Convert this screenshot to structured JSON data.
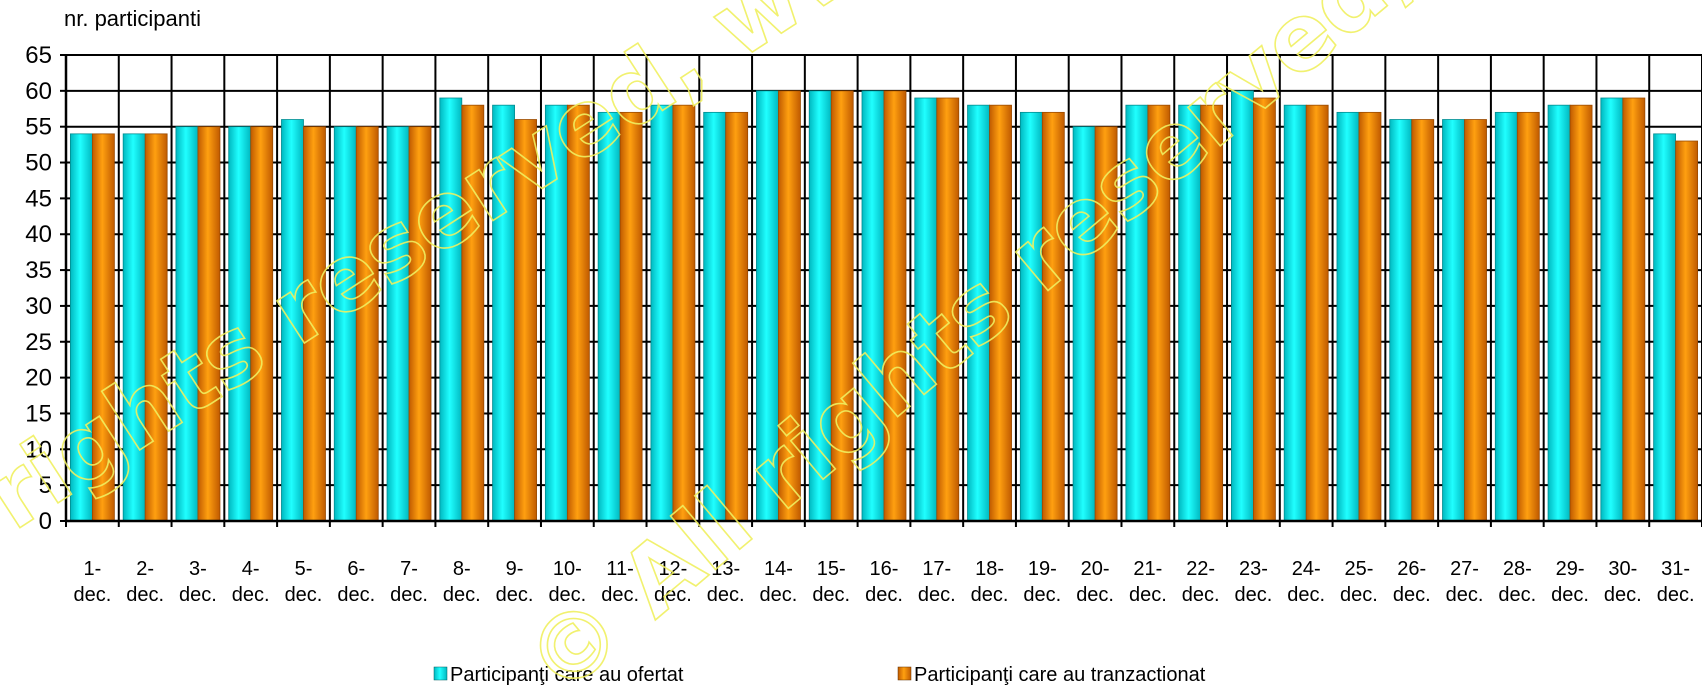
{
  "chart_data": {
    "type": "bar",
    "ylabel": "nr. participanti",
    "xlabel": "",
    "ylim": [
      0,
      65
    ],
    "ytick_step": 5,
    "grid": true,
    "legend_position": "bottom",
    "categories": [
      "1-dec.",
      "2-dec.",
      "3-dec.",
      "4-dec.",
      "5-dec.",
      "6-dec.",
      "7-dec.",
      "8-dec.",
      "9-dec.",
      "10-dec.",
      "11-dec.",
      "12-dec.",
      "13-dec.",
      "14-dec.",
      "15-dec.",
      "16-dec.",
      "17-dec.",
      "18-dec.",
      "19-dec.",
      "20-dec.",
      "21-dec.",
      "22-dec.",
      "23-dec.",
      "24-dec.",
      "25-dec.",
      "26-dec.",
      "27-dec.",
      "28-dec.",
      "29-dec.",
      "30-dec.",
      "31-dec."
    ],
    "series": [
      {
        "name": "Participanţi care au ofertat",
        "color": "#00e5e5",
        "values": [
          54,
          54,
          55,
          55,
          56,
          55,
          55,
          59,
          58,
          58,
          57,
          58,
          57,
          60,
          60,
          60,
          59,
          58,
          57,
          55,
          58,
          58,
          60,
          58,
          57,
          56,
          56,
          57,
          58,
          59,
          54
        ]
      },
      {
        "name": "Participanţi care au tranzactionat",
        "color": "#f08a00",
        "values": [
          54,
          54,
          55,
          55,
          55,
          55,
          55,
          58,
          56,
          58,
          57,
          58,
          57,
          60,
          60,
          60,
          59,
          58,
          57,
          55,
          58,
          58,
          59,
          58,
          57,
          56,
          56,
          57,
          58,
          59,
          53
        ]
      }
    ]
  },
  "watermark": {
    "text": "© All rights reserved, www.opcom.ro",
    "color": "#f0f060"
  }
}
